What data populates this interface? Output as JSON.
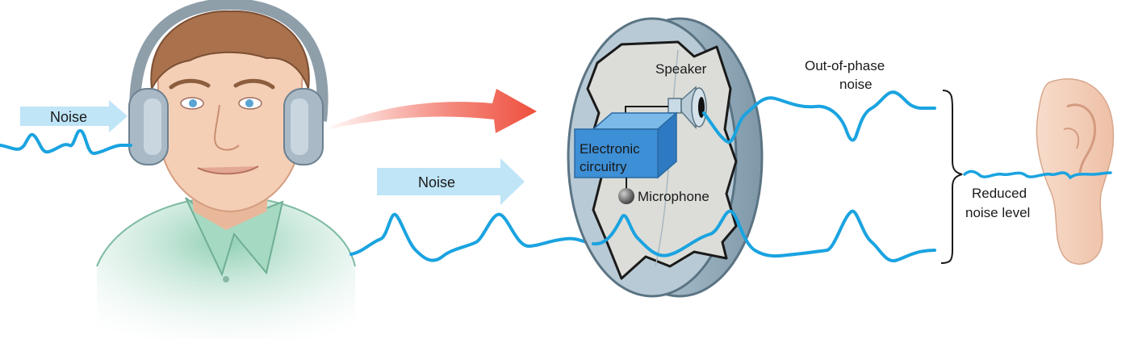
{
  "labels": {
    "noise_left": "Noise",
    "noise_middle": "Noise",
    "speaker": "Speaker",
    "electronic_line1": "Electronic",
    "electronic_line2": "circuitry",
    "microphone": "Microphone",
    "out_of_phase_line1": "Out-of-phase",
    "out_of_phase_line2": "noise",
    "reduced_line1": "Reduced",
    "reduced_line2": "noise level"
  },
  "colors": {
    "wave": "#1aa3e0",
    "noise_arrow": "#bfe5f7",
    "red_arrow": "#f06050",
    "circuit_box": "#3d8fd6",
    "headphone": "#9aabb8",
    "shirt": "#8fc9b0",
    "skin": "#f3cdb2",
    "hair": "#a56b45",
    "device_rim": "#aabfcc",
    "device_face": "#dcddd8"
  },
  "icons": [
    "person-with-headphones",
    "headphone-cross-section",
    "ear"
  ]
}
